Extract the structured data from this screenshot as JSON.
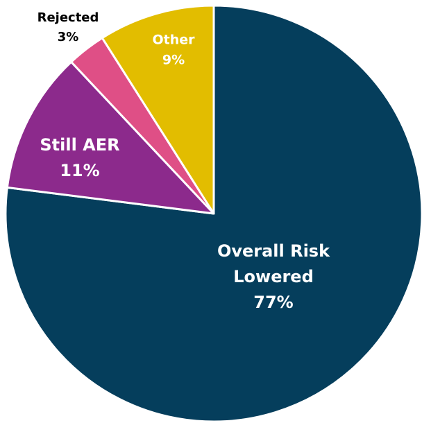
{
  "chart_data": {
    "type": "pie",
    "categories": [
      "Overall Risk Lowered",
      "Still AER",
      "Rejected",
      "Other"
    ],
    "values": [
      77,
      11,
      3,
      9
    ],
    "value_labels": [
      "77%",
      "11%",
      "3%",
      "9%"
    ],
    "colors": [
      "#053e5c",
      "#8c2a8c",
      "#df4f86",
      "#e2bd00"
    ]
  }
}
